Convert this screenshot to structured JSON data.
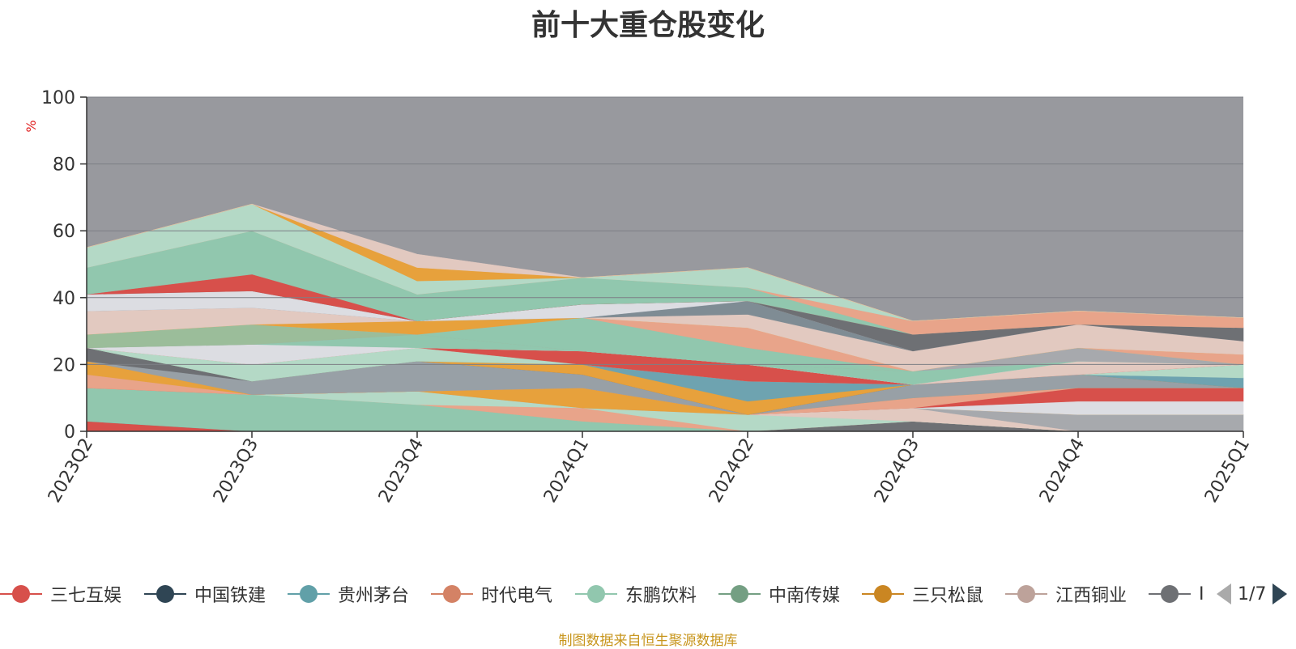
{
  "title": "前十大重仓股变化",
  "source_note": "制图数据来自恒生聚源数据库",
  "legend_pager": "1/7",
  "chart_data": {
    "type": "area",
    "stacked": true,
    "title": "前十大重仓股变化",
    "ylabel": "%",
    "ylim": [
      0,
      100
    ],
    "yticks": [
      0,
      20,
      40,
      60,
      80,
      100
    ],
    "categories": [
      "2023Q2",
      "2023Q3",
      "2023Q4",
      "2024Q1",
      "2024Q2",
      "2024Q3",
      "2024Q4",
      "2025Q1"
    ],
    "remainder_color": "#98999e",
    "grid": true,
    "legend_position": "bottom",
    "layers": [
      {
        "color": "#d7504b",
        "values": [
          3,
          0,
          0,
          0,
          0,
          0,
          0,
          0
        ]
      },
      {
        "color": "#6e7074",
        "values": [
          0,
          0,
          0,
          0,
          0,
          3,
          0,
          0
        ]
      },
      {
        "color": "#91c7ae",
        "values": [
          10,
          11,
          8,
          3,
          0,
          0,
          0,
          0
        ]
      },
      {
        "color": "#e8a48a",
        "values": [
          0,
          0,
          0,
          4,
          0,
          0,
          0,
          0
        ]
      },
      {
        "color": "#b4d9c6",
        "values": [
          0,
          0,
          4,
          0,
          5,
          0,
          0,
          0
        ]
      },
      {
        "color": "#e2c9c0",
        "values": [
          0,
          0,
          0,
          0,
          0,
          4,
          0,
          0
        ]
      },
      {
        "color": "#a7a9ad",
        "values": [
          0,
          0,
          0,
          0,
          0,
          0,
          5,
          5
        ]
      },
      {
        "color": "#e7a13c",
        "values": [
          0,
          0,
          0,
          6,
          0,
          0,
          0,
          0
        ]
      },
      {
        "color": "#dcdde2",
        "values": [
          0,
          0,
          0,
          0,
          0,
          0,
          4,
          4
        ]
      },
      {
        "color": "#d7504b",
        "values": [
          0,
          0,
          0,
          0,
          0,
          0,
          4,
          4
        ]
      },
      {
        "color": "#e8a48a",
        "values": [
          4,
          0,
          0,
          0,
          0,
          3,
          0,
          0
        ]
      },
      {
        "color": "#e7a13c",
        "values": [
          4,
          0,
          0,
          0,
          0,
          0,
          0,
          0
        ]
      },
      {
        "color": "#98a0a6",
        "values": [
          0,
          4,
          9,
          4,
          0,
          4,
          4,
          0
        ]
      },
      {
        "color": "#6e7074",
        "values": [
          4,
          0,
          0,
          0,
          0,
          0,
          0,
          0
        ]
      },
      {
        "color": "#e7a13c",
        "values": [
          0,
          0,
          0,
          3,
          4,
          0,
          0,
          0
        ]
      },
      {
        "color": "#6ea3b0",
        "values": [
          0,
          0,
          0,
          0,
          6,
          0,
          0,
          3
        ]
      },
      {
        "color": "#b4d9c6",
        "values": [
          0,
          5,
          4,
          0,
          0,
          0,
          0,
          4
        ]
      },
      {
        "color": "#d7504b",
        "values": [
          0,
          0,
          0,
          4,
          5,
          0,
          0,
          0
        ]
      },
      {
        "color": "#e2c9c0",
        "values": [
          0,
          0,
          0,
          0,
          0,
          0,
          4,
          0
        ]
      },
      {
        "color": "#dcdde2",
        "values": [
          0,
          6,
          0,
          0,
          0,
          0,
          0,
          0
        ]
      },
      {
        "color": "#91c7ae",
        "values": [
          0,
          0,
          4,
          0,
          0,
          4,
          0,
          0
        ]
      },
      {
        "color": "#a7a9ad",
        "values": [
          0,
          0,
          0,
          0,
          0,
          0,
          4,
          0
        ]
      },
      {
        "color": "#9bbd9a",
        "values": [
          4,
          6,
          0,
          0,
          0,
          0,
          0,
          0
        ]
      },
      {
        "color": "#91c7ae",
        "values": [
          0,
          0,
          0,
          10,
          5,
          0,
          0,
          0
        ]
      },
      {
        "color": "#e8a48a",
        "values": [
          0,
          0,
          0,
          0,
          6,
          0,
          0,
          3
        ]
      },
      {
        "color": "#e7a13c",
        "values": [
          0,
          0,
          4,
          0,
          0,
          0,
          0,
          0
        ]
      },
      {
        "color": "#e2c9c0",
        "values": [
          7,
          5,
          0,
          0,
          4,
          6,
          7,
          4
        ]
      },
      {
        "color": "#7f8c94",
        "values": [
          0,
          0,
          0,
          0,
          4,
          0,
          0,
          0
        ]
      },
      {
        "color": "#dcdde2",
        "values": [
          5,
          5,
          0,
          4,
          0,
          0,
          0,
          0
        ]
      },
      {
        "color": "#6e7074",
        "values": [
          0,
          0,
          0,
          0,
          0,
          5,
          0,
          4
        ]
      },
      {
        "color": "#d7504b",
        "values": [
          0,
          5,
          0,
          0,
          0,
          0,
          0,
          0
        ]
      },
      {
        "color": "#91c7ae",
        "values": [
          8,
          13,
          8,
          8,
          4,
          0,
          0,
          0
        ]
      },
      {
        "color": "#e8a48a",
        "values": [
          0,
          0,
          0,
          0,
          0,
          4,
          4,
          3
        ]
      },
      {
        "color": "#b4d9c6",
        "values": [
          6,
          8,
          4,
          0,
          6,
          0,
          0,
          0
        ]
      },
      {
        "color": "#e7a13c",
        "values": [
          0,
          0,
          4,
          0,
          0,
          0,
          0,
          0
        ]
      },
      {
        "color": "#e2c9c0",
        "values": [
          0,
          0,
          4,
          0,
          0,
          0,
          0,
          0
        ]
      }
    ]
  },
  "legend": [
    {
      "name": "三七互娱",
      "color": "#d7504b"
    },
    {
      "name": "中国铁建",
      "color": "#2f4554"
    },
    {
      "name": "贵州茅台",
      "color": "#61a0a8"
    },
    {
      "name": "时代电气",
      "color": "#d48265"
    },
    {
      "name": "东鹏饮料",
      "color": "#91c7ae"
    },
    {
      "name": "中南传媒",
      "color": "#749f83"
    },
    {
      "name": "三只松鼠",
      "color": "#ca8622"
    },
    {
      "name": "江西铜业",
      "color": "#bda29a"
    },
    {
      "name": "I",
      "color": "#6e7074"
    }
  ]
}
